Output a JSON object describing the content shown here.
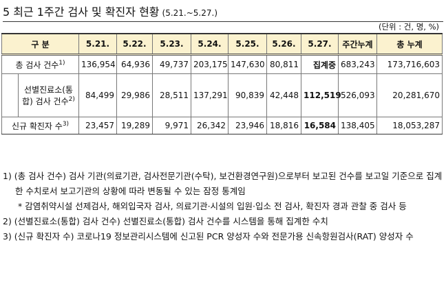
{
  "header": {
    "title": "5 최근 1주간 검사 및 확진자 현황",
    "subtitle": "(5.21.~5.27.)",
    "unit": "(단위 : 건, 명, %)"
  },
  "table": {
    "columns": [
      "구 분",
      "5.21.",
      "5.22.",
      "5.23.",
      "5.24.",
      "5.25.",
      "5.26.",
      "5.27.",
      "주간누계",
      "총 누계"
    ],
    "rows": [
      {
        "label": "총 검사 건수",
        "note": "1)",
        "cells": [
          "136,954",
          "64,936",
          "49,737",
          "203,175",
          "147,630",
          "80,811",
          "집계중",
          "683,243",
          "173,716,603"
        ]
      },
      {
        "label": "선별진료소(통합) 검사 건수",
        "note": "2)",
        "cells": [
          "84,499",
          "29,986",
          "28,511",
          "137,291",
          "90,839",
          "42,448",
          "112,519",
          "526,093",
          "20,281,670"
        ]
      },
      {
        "label": "신규 확진자 수",
        "note": "3)",
        "cells": [
          "23,457",
          "19,289",
          "9,971",
          "26,342",
          "23,946",
          "18,816",
          "16,584",
          "138,405",
          "18,053,287"
        ]
      }
    ]
  },
  "notes": [
    "1) (총 검사 건수) 검사 기관(의료기관, 검사전문기관(수탁), 보건환경연구원)으로부터 보고된 건수를 보고일 기준으로 집계한 수치로서 보고기관의 상황에 따라 변동될 수 있는 잠정 통계임",
    "* 감염취약시설 선제검사, 해외입국자 검사, 의료기관·시설의 입원·입소 전 검사, 확진자 경과 관찰 중 검사 등",
    "2) (선별진료소(통합) 검사 건수) 선별진료소(통합) 검사 건수를 시스템을 통해 집계한 수치",
    "3) (신규 확진자 수) 코로나19 정보관리시스템에 신고된 PCR 양성자 수와 전문가용 신속항원검사(RAT) 양성자 수"
  ]
}
